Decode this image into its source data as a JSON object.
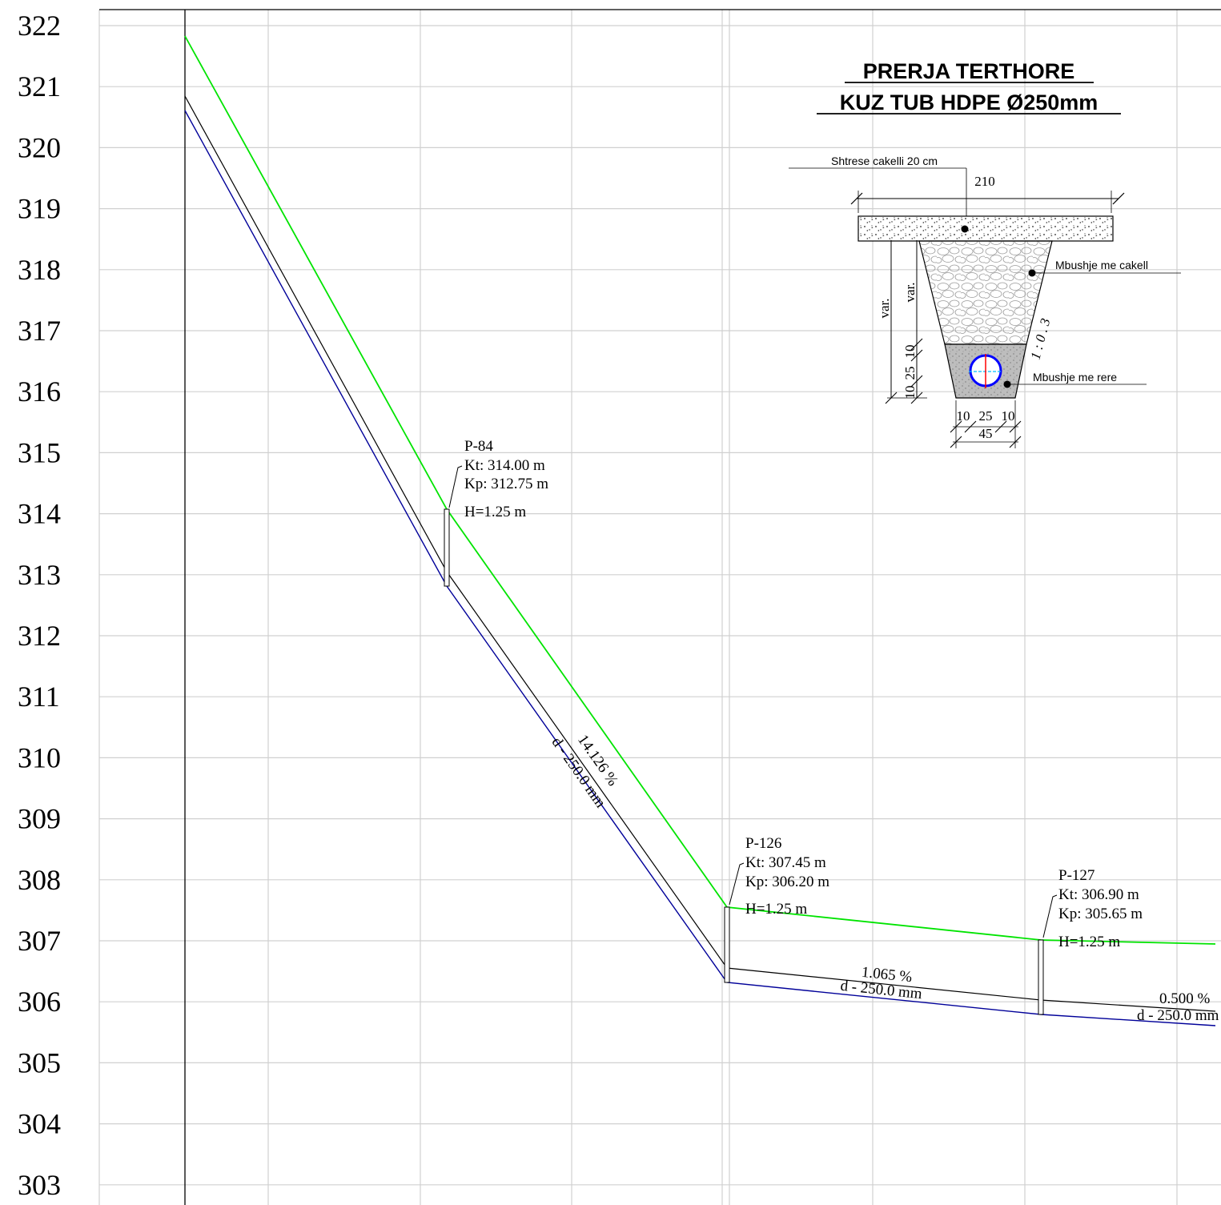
{
  "elevation_axis": {
    "ticks": [
      "322",
      "321",
      "320",
      "319",
      "318",
      "317",
      "316",
      "315",
      "314",
      "313",
      "312",
      "311",
      "310",
      "309",
      "308",
      "307",
      "306",
      "305",
      "304",
      "303"
    ]
  },
  "colors": {
    "terrain": "#00e400",
    "pipe_invert": "#000099",
    "pipe_crown": "#000000",
    "grid": "#d0d0d0",
    "pipe_section_ring": "#0000ff",
    "pipe_section_axis_v": "#ff0000",
    "pipe_section_axis_h": "#00bfff"
  },
  "manholes": [
    {
      "id": "P-84",
      "kt": "Kt: 314.00 m",
      "kp": "Kp: 312.75 m",
      "h": "H=1.25 m"
    },
    {
      "id": "P-126",
      "kt": "Kt: 307.45 m",
      "kp": "Kp: 306.20 m",
      "h": "H=1.25 m"
    },
    {
      "id": "P-127",
      "kt": "Kt: 306.90 m",
      "kp": "Kp: 305.65 m",
      "h": "H=1.25 m"
    }
  ],
  "segments": [
    {
      "slope": "14.126 %",
      "diameter": "d - 250.0 mm"
    },
    {
      "slope": "1.065 %",
      "diameter": "d - 250.0 mm"
    },
    {
      "slope": "0.500 %",
      "diameter": "d - 250.0 mm"
    }
  ],
  "cross_section": {
    "title_line1": "PRERJA TERTHORE",
    "title_line2": "KUZ TUB HDPE Ø250mm",
    "top_layer": "Shtrese cakelli 20 cm",
    "fill_gravel": "Mbushje me cakell",
    "fill_sand": "Mbushje me rere",
    "top_width": "210",
    "slope_ratio": "1 : 0 . 3",
    "var_outer": "var.",
    "var_inner": "var.",
    "left_dims": [
      "10",
      "25",
      "10"
    ],
    "bottom_dims": [
      "10",
      "25",
      "10"
    ],
    "bottom_total": "45"
  }
}
